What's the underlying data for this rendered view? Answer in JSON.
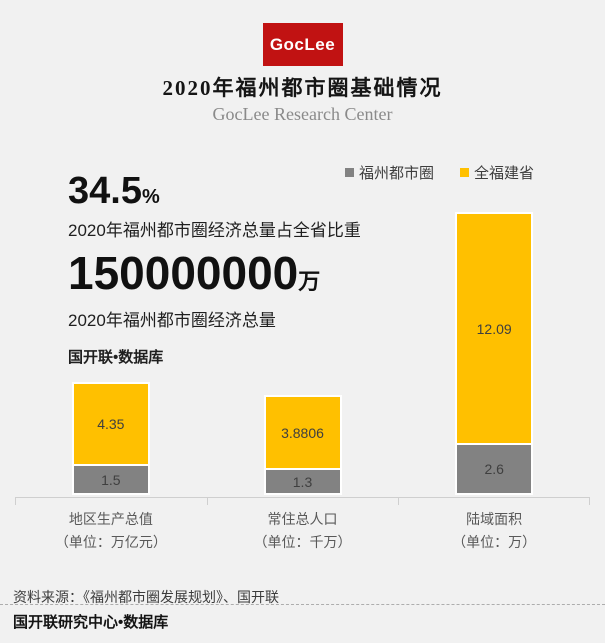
{
  "brand": {
    "logo_text": "GocLee",
    "accent_red": "#c11212"
  },
  "header": {
    "title": "2020年福州都市圈基础情况",
    "subtitle": "GocLee Research Center"
  },
  "stats": [
    {
      "value": "34.5",
      "unit": "%",
      "caption": "2020年福州都市圈经济总量占全省比重"
    },
    {
      "value": "150000000",
      "unit": "万",
      "caption": "2020年福州都市圈经济总量"
    }
  ],
  "stats_source": "国开联•数据库",
  "chart_data": {
    "type": "bar",
    "stacked": true,
    "categories": [
      "地区生产总值",
      "常住总人口",
      "陆域面积"
    ],
    "category_units": [
      "（单位：万亿元）",
      "（单位：千万）",
      "（单位：万）"
    ],
    "series": [
      {
        "name": "福州都市圈",
        "color": "#828282",
        "values": [
          1.5,
          1.3,
          2.6
        ]
      },
      {
        "name": "全福建省",
        "color": "#ffc000",
        "values": [
          4.35,
          3.8806,
          12.09
        ]
      }
    ],
    "legend_position": "top-right",
    "grid": false,
    "value_labels": true,
    "background": "#f1f1f1"
  },
  "footer": {
    "source": "资料来源：《福州都市圈发展规划》、国开联",
    "credit": "国开联研究中心•数据库"
  }
}
